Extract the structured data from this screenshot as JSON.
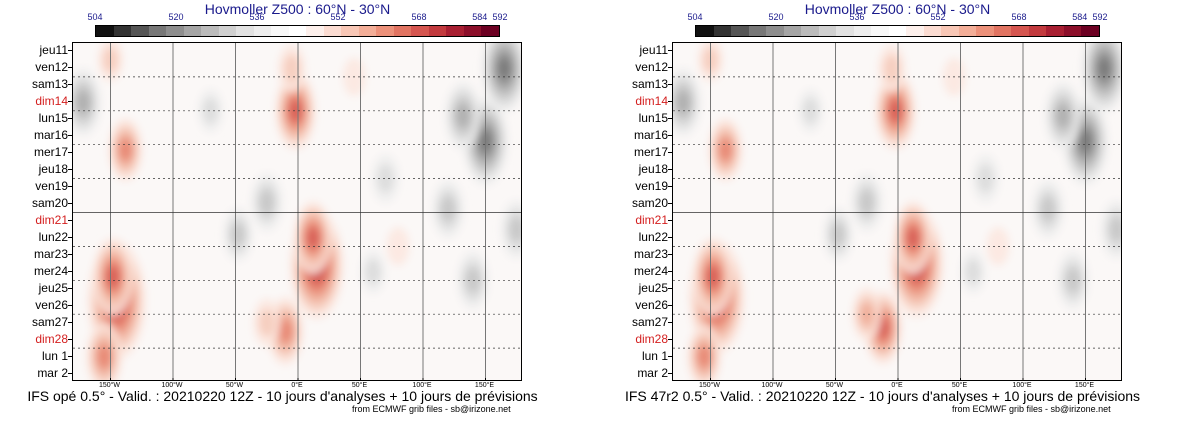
{
  "chart_data": [
    {
      "type": "heatmap",
      "title": "Hovmoller Z500 : 60°N - 30°N",
      "footer": "IFS opé 0.5° - Valid. : 20210220 12Z - 10 jours d'analyses + 10 jours de prévisions",
      "credit": "from ECMWF grib files - sb@irizone.net",
      "colorbar_ticks": [
        "504",
        "520",
        "536",
        "552",
        "568",
        "584",
        "592"
      ],
      "y_categories": [
        "jeu11",
        "ven12",
        "sam13",
        "dim14",
        "lun15",
        "mar16",
        "mer17",
        "jeu18",
        "ven19",
        "sam20",
        "dim21",
        "lun22",
        "mar23",
        "mer24",
        "jeu25",
        "ven26",
        "sam27",
        "dim28",
        "lun 1",
        "mar 2"
      ],
      "weekend_red": [
        "dim14",
        "dim21",
        "dim28"
      ],
      "x_ticks": [
        "150°W",
        "100°W",
        "50°W",
        "0°E",
        "50°E",
        "100°E",
        "150°E"
      ],
      "x_tick_values": [
        -150,
        -100,
        -50,
        0,
        50,
        100,
        150
      ],
      "xlim": [
        -180,
        180
      ],
      "blobs": [
        {
          "lon": -145,
          "day": 15.2,
          "r": "high",
          "v": 9.0
        },
        {
          "lon": -148,
          "day": 13.8,
          "r": "high",
          "v": 5.0
        },
        {
          "lon": -155,
          "day": 18.5,
          "r": "high",
          "v": 4.0
        },
        {
          "lon": -138,
          "day": 6.3,
          "r": "high",
          "v": 3.5
        },
        {
          "lon": 15,
          "day": 13.1,
          "r": "high",
          "v": 8.0
        },
        {
          "lon": 12,
          "day": 11.5,
          "r": "high",
          "v": 4.5
        },
        {
          "lon": -2,
          "day": 4.0,
          "r": "high",
          "v": 5.0
        },
        {
          "lon": -5,
          "day": 1.5,
          "r": "high",
          "v": 2.0
        },
        {
          "lon": -10,
          "day": 17.0,
          "r": "high",
          "v": 4.0
        },
        {
          "lon": -25,
          "day": 16.5,
          "r": "high",
          "v": 2.0
        },
        {
          "lon": -150,
          "day": 1.0,
          "r": "high",
          "v": 1.5
        },
        {
          "lon": 45,
          "day": 2.0,
          "r": "high",
          "v": 1.0
        },
        {
          "lon": 80,
          "day": 12.0,
          "r": "high",
          "v": 1.0
        },
        {
          "lon": 165,
          "day": 1.5,
          "r": "low",
          "v": 6.0
        },
        {
          "lon": 150,
          "day": 5.8,
          "r": "low",
          "v": 6.0
        },
        {
          "lon": 132,
          "day": 4.3,
          "r": "low",
          "v": 4.0
        },
        {
          "lon": -172,
          "day": 3.5,
          "r": "low",
          "v": 4.0
        },
        {
          "lon": -48,
          "day": 11.3,
          "r": "low",
          "v": 2.5
        },
        {
          "lon": -25,
          "day": 9.4,
          "r": "low",
          "v": 3.0
        },
        {
          "lon": 120,
          "day": 9.8,
          "r": "low",
          "v": 3.0
        },
        {
          "lon": 140,
          "day": 14.0,
          "r": "low",
          "v": 3.0
        },
        {
          "lon": 70,
          "day": 8.0,
          "r": "low",
          "v": 2.0
        },
        {
          "lon": -70,
          "day": 4.0,
          "r": "low",
          "v": 1.5
        },
        {
          "lon": 175,
          "day": 11.0,
          "r": "low",
          "v": 3.0
        },
        {
          "lon": 60,
          "day": 13.5,
          "r": "low",
          "v": 1.5
        }
      ]
    },
    {
      "type": "heatmap",
      "title": "Hovmoller Z500 : 60°N - 30°N",
      "footer": "IFS 47r2 0.5° - Valid. : 20210220 12Z - 10 jours d'analyses + 10 jours de prévisions",
      "credit": "from ECMWF grib files - sb@irizone.net",
      "colorbar_ticks": [
        "504",
        "520",
        "536",
        "552",
        "568",
        "584",
        "592"
      ],
      "y_categories": [
        "jeu11",
        "ven12",
        "sam13",
        "dim14",
        "lun15",
        "mar16",
        "mer17",
        "jeu18",
        "ven19",
        "sam20",
        "dim21",
        "lun22",
        "mar23",
        "mer24",
        "jeu25",
        "ven26",
        "sam27",
        "dim28",
        "lun 1",
        "mar 2"
      ],
      "weekend_red": [
        "dim14",
        "dim21",
        "dim28"
      ],
      "x_ticks": [
        "150°W",
        "100°W",
        "50°W",
        "0°E",
        "50°E",
        "100°E",
        "150°E"
      ],
      "x_tick_values": [
        -150,
        -100,
        -50,
        0,
        50,
        100,
        150
      ],
      "xlim": [
        -180,
        180
      ],
      "blobs": [
        {
          "lon": -145,
          "day": 15.0,
          "r": "high",
          "v": 8.5
        },
        {
          "lon": -148,
          "day": 13.8,
          "r": "high",
          "v": 5.0
        },
        {
          "lon": -155,
          "day": 18.5,
          "r": "high",
          "v": 3.5
        },
        {
          "lon": -138,
          "day": 6.3,
          "r": "high",
          "v": 3.5
        },
        {
          "lon": 15,
          "day": 13.0,
          "r": "high",
          "v": 8.0
        },
        {
          "lon": 12,
          "day": 11.5,
          "r": "high",
          "v": 4.5
        },
        {
          "lon": -2,
          "day": 4.0,
          "r": "high",
          "v": 5.0
        },
        {
          "lon": -5,
          "day": 1.5,
          "r": "high",
          "v": 2.0
        },
        {
          "lon": -12,
          "day": 16.8,
          "r": "high",
          "v": 4.5
        },
        {
          "lon": -25,
          "day": 16.0,
          "r": "high",
          "v": 2.5
        },
        {
          "lon": -150,
          "day": 1.0,
          "r": "high",
          "v": 1.5
        },
        {
          "lon": 45,
          "day": 2.0,
          "r": "high",
          "v": 1.0
        },
        {
          "lon": 80,
          "day": 12.0,
          "r": "high",
          "v": 1.0
        },
        {
          "lon": 165,
          "day": 1.5,
          "r": "low",
          "v": 6.0
        },
        {
          "lon": 150,
          "day": 5.8,
          "r": "low",
          "v": 6.0
        },
        {
          "lon": 132,
          "day": 4.3,
          "r": "low",
          "v": 4.0
        },
        {
          "lon": -172,
          "day": 3.5,
          "r": "low",
          "v": 4.0
        },
        {
          "lon": -48,
          "day": 11.3,
          "r": "low",
          "v": 2.5
        },
        {
          "lon": -25,
          "day": 9.4,
          "r": "low",
          "v": 3.0
        },
        {
          "lon": 120,
          "day": 9.8,
          "r": "low",
          "v": 3.0
        },
        {
          "lon": 140,
          "day": 14.0,
          "r": "low",
          "v": 3.0
        },
        {
          "lon": 70,
          "day": 8.0,
          "r": "low",
          "v": 2.0
        },
        {
          "lon": -70,
          "day": 4.0,
          "r": "low",
          "v": 1.5
        },
        {
          "lon": 175,
          "day": 11.0,
          "r": "low",
          "v": 3.0
        },
        {
          "lon": 60,
          "day": 13.5,
          "r": "low",
          "v": 1.5
        }
      ]
    }
  ],
  "colors": {
    "colorbar": [
      "#111111",
      "#333333",
      "#555555",
      "#777777",
      "#8e8e8e",
      "#a5a5a5",
      "#bbbbbb",
      "#d0d0d0",
      "#e2e2e2",
      "#eeeeee",
      "#f8f8f8",
      "#ffffff",
      "#fdf0ec",
      "#fbdcd2",
      "#f8c7b6",
      "#f3ae98",
      "#ec917a",
      "#e17462",
      "#d55650",
      "#c23a3e",
      "#a81f32",
      "#8c0f2a",
      "#6c0022"
    ],
    "weekend": "#d42020",
    "title": "#1a1a8c"
  }
}
